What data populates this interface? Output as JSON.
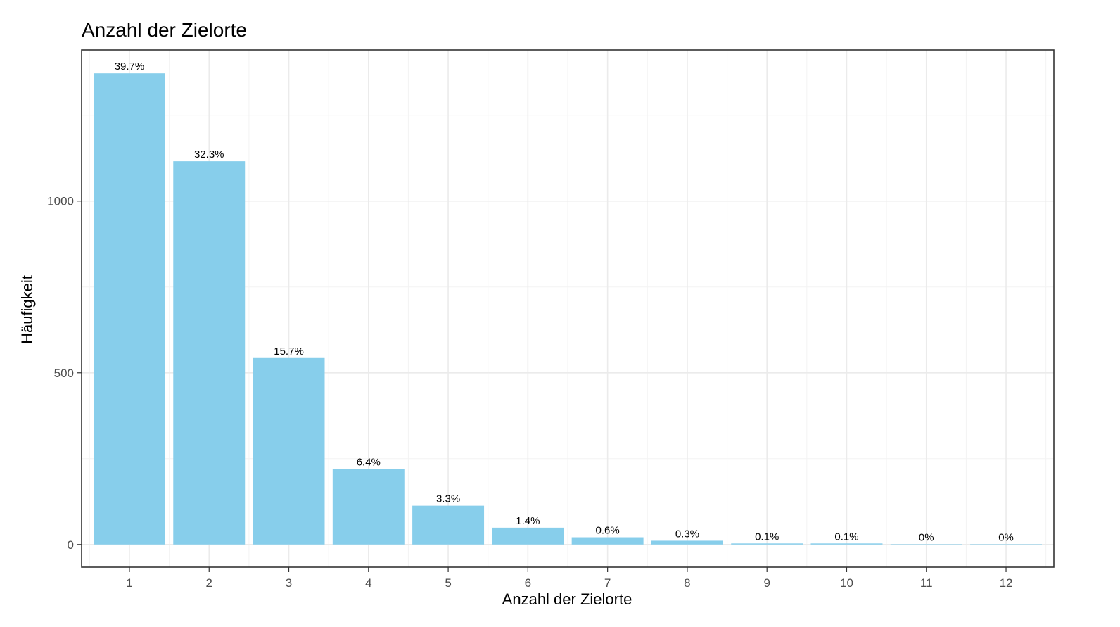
{
  "chart_data": {
    "type": "bar",
    "title": "Anzahl der Zielorte",
    "xlabel": "Anzahl der Zielorte",
    "ylabel": "Häufigkeit",
    "categories": [
      "1",
      "2",
      "3",
      "4",
      "5",
      "6",
      "7",
      "8",
      "9",
      "10",
      "11",
      "12"
    ],
    "values": [
      1372,
      1116,
      543,
      220,
      113,
      49,
      21,
      11,
      3,
      3,
      1,
      1
    ],
    "data_labels": [
      "39.7%",
      "32.3%",
      "15.7%",
      "6.4%",
      "3.3%",
      "1.4%",
      "0.6%",
      "0.3%",
      "0.1%",
      "0.1%",
      "0%",
      "0%"
    ],
    "y_ticks": [
      0,
      500,
      1000
    ],
    "y_tick_labels": [
      "0",
      "500",
      "1000"
    ],
    "ylim": [
      -66,
      1440
    ],
    "grid": true,
    "legend": "none",
    "bar_color": "#87ceeb"
  }
}
